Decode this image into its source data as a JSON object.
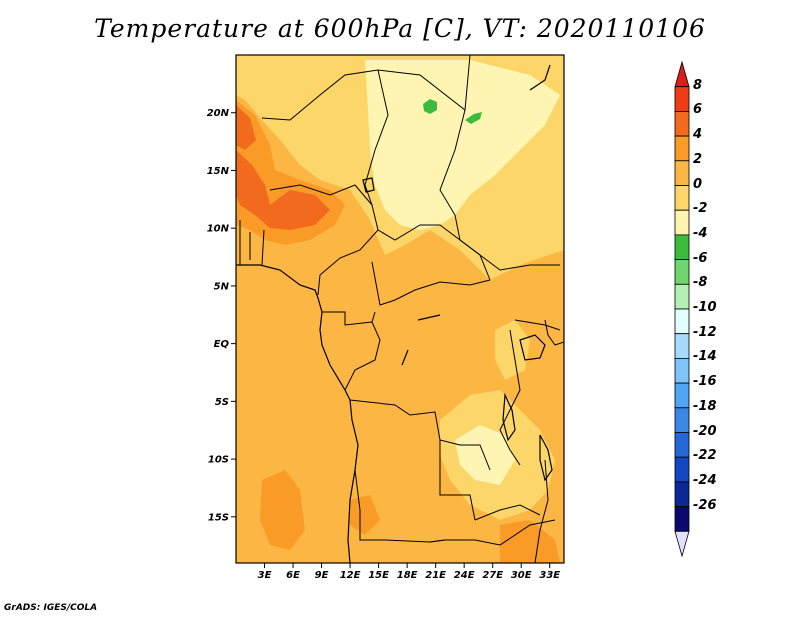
{
  "title": "Temperature at 600hPa [C], VT: 2020110106",
  "credit": "GrADS: IGES/COLA",
  "map": {
    "lon_range": [
      0,
      34.5
    ],
    "lat_range": [
      -19,
      25
    ],
    "lat_ticks": [
      {
        "value": 20,
        "label": "20N"
      },
      {
        "value": 15,
        "label": "15N"
      },
      {
        "value": 10,
        "label": "10N"
      },
      {
        "value": 5,
        "label": "5N"
      },
      {
        "value": 0,
        "label": "EQ"
      },
      {
        "value": -5,
        "label": "5S"
      },
      {
        "value": -10,
        "label": "10S"
      },
      {
        "value": -15,
        "label": "15S"
      }
    ],
    "lon_ticks": [
      {
        "value": 3,
        "label": "3E"
      },
      {
        "value": 6,
        "label": "6E"
      },
      {
        "value": 9,
        "label": "9E"
      },
      {
        "value": 12,
        "label": "12E"
      },
      {
        "value": 15,
        "label": "15E"
      },
      {
        "value": 18,
        "label": "18E"
      },
      {
        "value": 21,
        "label": "21E"
      },
      {
        "value": 24,
        "label": "24E"
      },
      {
        "value": 27,
        "label": "27E"
      },
      {
        "value": 30,
        "label": "30E"
      },
      {
        "value": 33,
        "label": "33E"
      }
    ]
  },
  "colorbar": {
    "levels": [
      "8",
      "6",
      "4",
      "2",
      "0",
      "-2",
      "-4",
      "-6",
      "-8",
      "-10",
      "-12",
      "-14",
      "-16",
      "-18",
      "-20",
      "-22",
      "-24",
      "-26"
    ],
    "colors": [
      "#d81e1e",
      "#ee3c14",
      "#f26a1e",
      "#f99b26",
      "#fbb643",
      "#fdd66a",
      "#fef5b2",
      "#3cbc3c",
      "#6fd66f",
      "#b4f0b4",
      "#e1ffff",
      "#a6dbfc",
      "#7cc4fa",
      "#50a5f5",
      "#3a87e8",
      "#2566d8",
      "#1446c4",
      "#0a2898",
      "#0a0a6e",
      "#e0e0ff"
    ]
  },
  "palette": {
    "orange": "#fbb643",
    "light_orange": "#fdd66a",
    "pale_yellow": "#fef5b2",
    "dark_orange": "#f99b26",
    "red_orange": "#f26a1e",
    "green": "#3cbc3c",
    "border": "#000000"
  }
}
